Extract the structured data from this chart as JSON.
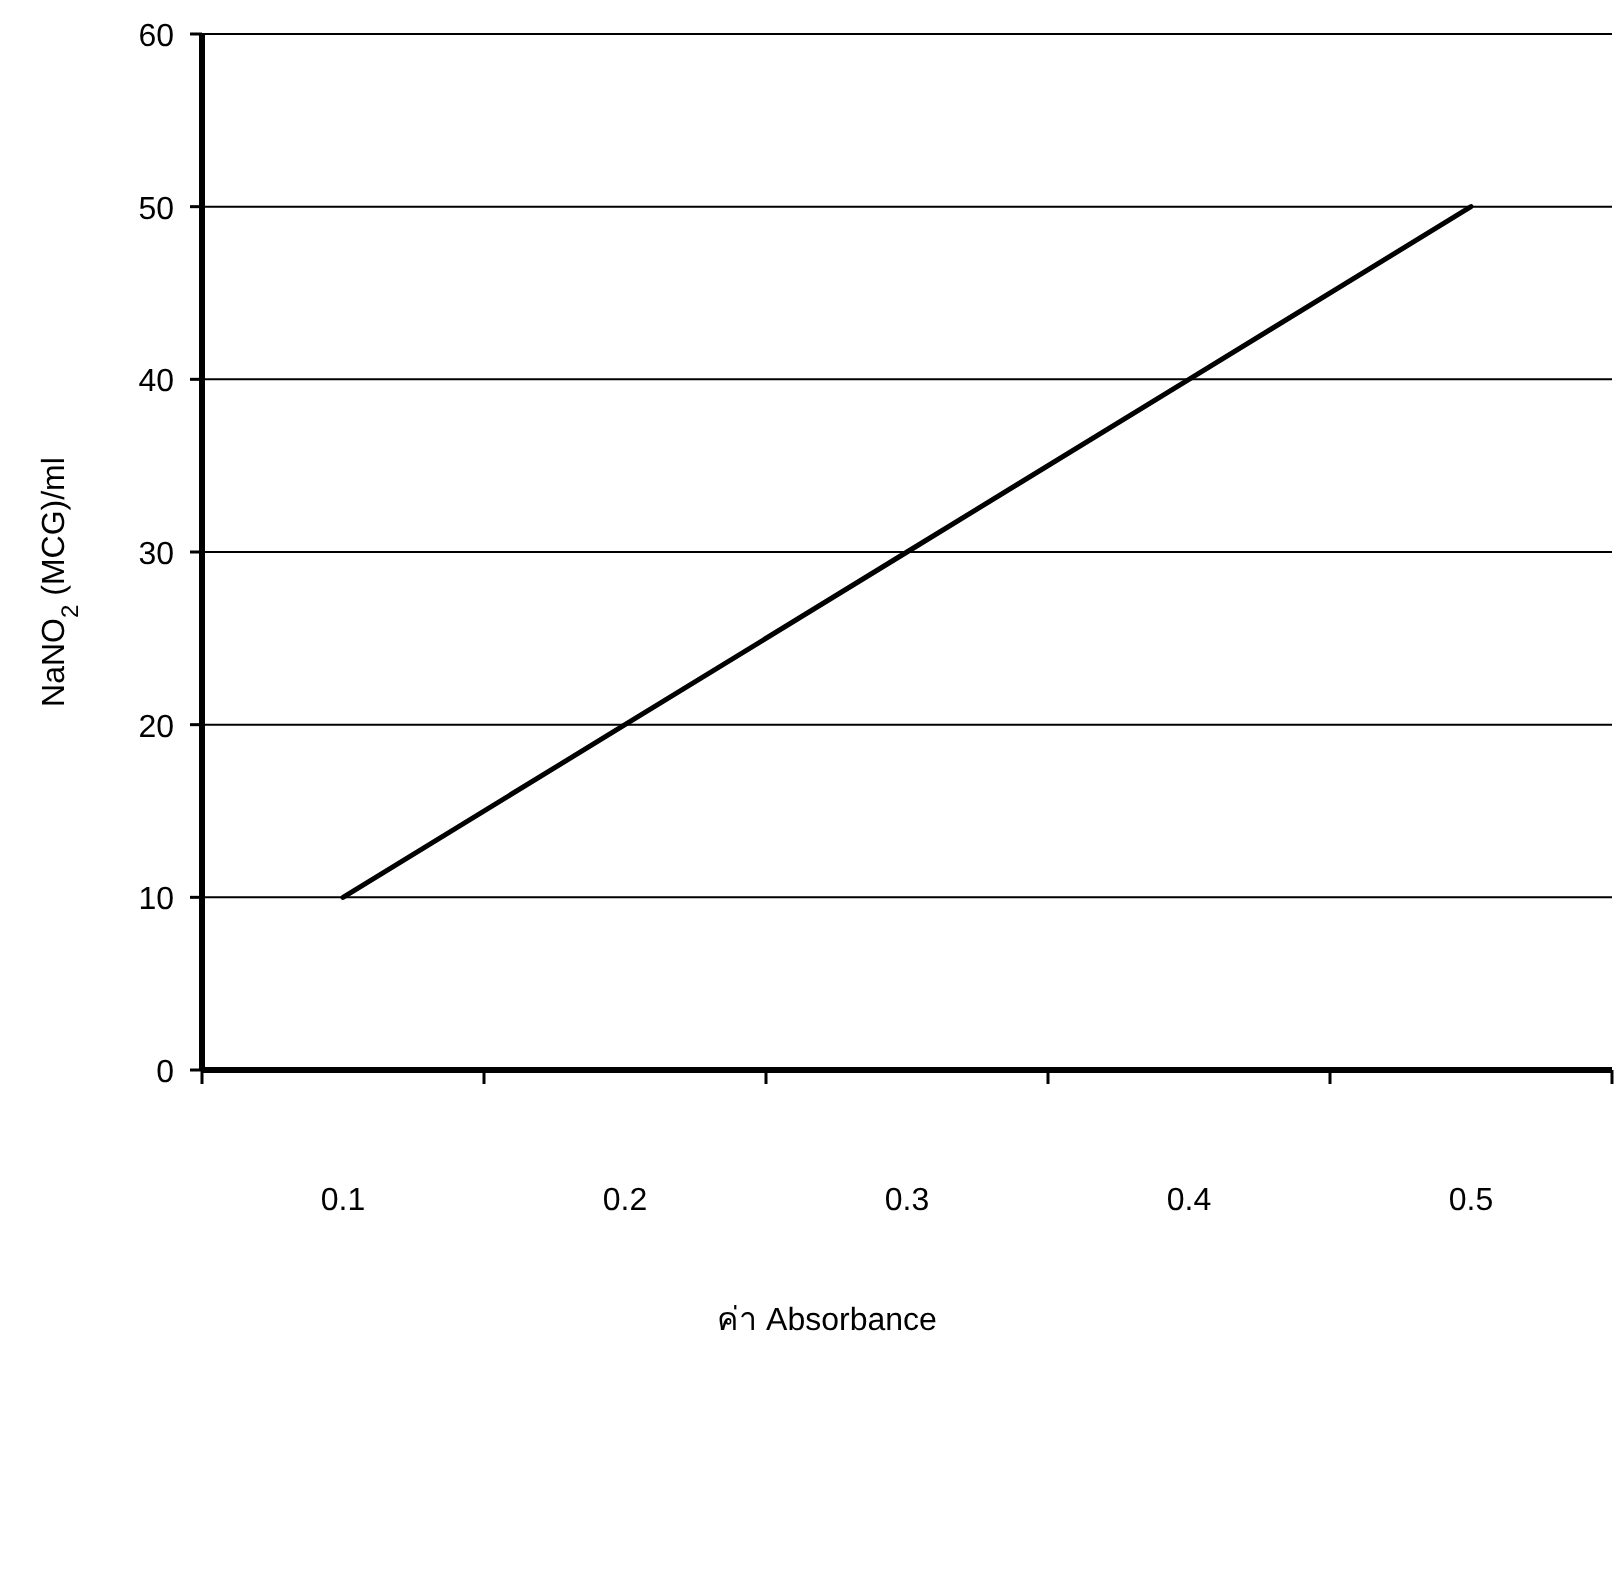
{
  "chart_data": {
    "type": "line",
    "xlabel": "ค่า Absorbance",
    "ylabel": "NaNO$_{2}$ (MCG)/ml",
    "categories": [
      "0.1",
      "0.2",
      "0.3",
      "0.4",
      "0.5"
    ],
    "values": [
      10,
      20,
      30,
      40,
      50
    ],
    "color": "#000000",
    "ylim": [
      0,
      60
    ],
    "yticks": [
      0,
      10,
      20,
      30,
      40,
      50,
      60
    ],
    "grid": "y"
  }
}
